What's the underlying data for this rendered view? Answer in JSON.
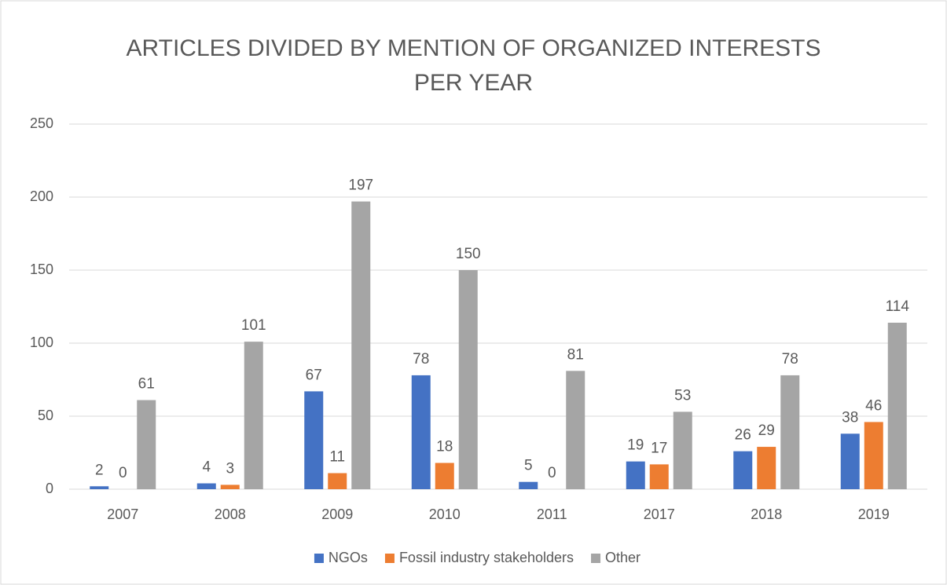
{
  "chart_data": {
    "type": "bar",
    "title": "ARTICLES DIVIDED BY MENTION OF ORGANIZED INTERESTS PER YEAR",
    "categories": [
      "2007",
      "2008",
      "2009",
      "2010",
      "2011",
      "2017",
      "2018",
      "2019"
    ],
    "series": [
      {
        "name": "NGOs",
        "color": "#4472c4",
        "values": [
          2,
          4,
          67,
          78,
          5,
          19,
          26,
          38
        ]
      },
      {
        "name": "Fossil industry stakeholders",
        "color": "#ed7d31",
        "values": [
          0,
          3,
          11,
          18,
          0,
          17,
          29,
          46
        ]
      },
      {
        "name": "Other",
        "color": "#a5a5a5",
        "values": [
          61,
          101,
          197,
          150,
          81,
          53,
          78,
          114
        ]
      }
    ],
    "ylim": [
      0,
      250
    ],
    "yticks": [
      0,
      50,
      100,
      150,
      200,
      250
    ],
    "grid": true,
    "legend": "bottom"
  }
}
